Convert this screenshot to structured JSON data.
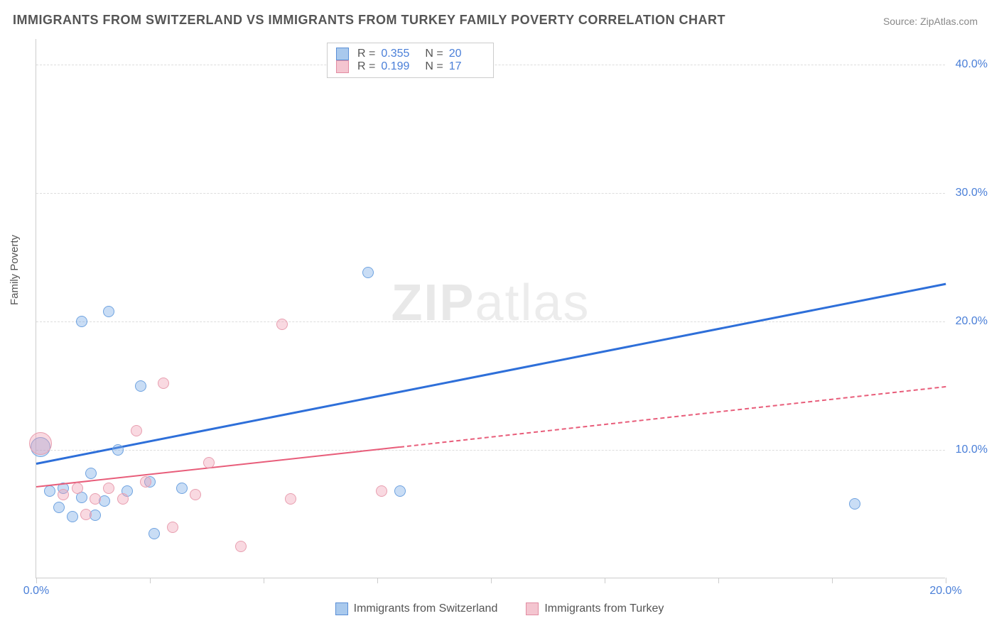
{
  "title": "IMMIGRANTS FROM SWITZERLAND VS IMMIGRANTS FROM TURKEY FAMILY POVERTY CORRELATION CHART",
  "source": "Source: ZipAtlas.com",
  "ylabel": "Family Poverty",
  "watermark_bold": "ZIP",
  "watermark_thin": "atlas",
  "chart": {
    "type": "scatter",
    "xlim": [
      0,
      20
    ],
    "ylim": [
      0,
      42
    ],
    "background_color": "#ffffff",
    "grid_color": "#dddddd",
    "axis_color": "#cccccc",
    "label_color": "#4a7fd8",
    "title_color": "#555555",
    "title_fontsize": 18,
    "label_fontsize": 15,
    "tick_fontsize": 16,
    "yticks": [
      10,
      20,
      30,
      40
    ],
    "ytick_labels": [
      "10.0%",
      "20.0%",
      "30.0%",
      "40.0%"
    ],
    "xticks": [
      0,
      2.5,
      5,
      7.5,
      10,
      12.5,
      15,
      17.5,
      20
    ],
    "xtick_labels_shown": {
      "0": "0.0%",
      "20": "20.0%"
    },
    "series": [
      {
        "name": "Immigrants from Switzerland",
        "color_fill": "rgba(120,170,230,0.4)",
        "color_stroke": "#6fa3e0",
        "swatch_fill": "#a9c9ed",
        "swatch_stroke": "#5b8fd6",
        "marker_radius": 8,
        "R": "0.355",
        "N": "20",
        "trend": {
          "color": "#2e6fd9",
          "width": 3,
          "dash": "solid",
          "x1": 0,
          "y1": 9.0,
          "x2": 20,
          "y2": 23.0
        },
        "points": [
          {
            "x": 0.1,
            "y": 10.2,
            "r": 14
          },
          {
            "x": 0.3,
            "y": 6.8
          },
          {
            "x": 0.5,
            "y": 5.5
          },
          {
            "x": 0.6,
            "y": 7.0
          },
          {
            "x": 0.8,
            "y": 4.8
          },
          {
            "x": 1.0,
            "y": 6.3
          },
          {
            "x": 1.0,
            "y": 20.0
          },
          {
            "x": 1.2,
            "y": 8.2
          },
          {
            "x": 1.3,
            "y": 4.9
          },
          {
            "x": 1.5,
            "y": 6.0
          },
          {
            "x": 1.6,
            "y": 20.8
          },
          {
            "x": 1.8,
            "y": 10.0
          },
          {
            "x": 2.0,
            "y": 6.8
          },
          {
            "x": 2.3,
            "y": 15.0
          },
          {
            "x": 2.5,
            "y": 7.5
          },
          {
            "x": 2.6,
            "y": 3.5
          },
          {
            "x": 3.2,
            "y": 7.0
          },
          {
            "x": 7.3,
            "y": 23.8
          },
          {
            "x": 8.0,
            "y": 6.8
          },
          {
            "x": 18.0,
            "y": 5.8
          }
        ]
      },
      {
        "name": "Immigrants from Turkey",
        "color_fill": "rgba(240,160,180,0.4)",
        "color_stroke": "#e89fb0",
        "swatch_fill": "#f4c5d0",
        "swatch_stroke": "#e28ca2",
        "marker_radius": 8,
        "R": "0.199",
        "N": "17",
        "trend": {
          "color": "#e85d7a",
          "width": 2,
          "dash": "solid",
          "x1": 0,
          "y1": 7.2,
          "x2": 8,
          "y2": 10.3,
          "extend": {
            "x2": 20,
            "y2": 15.0,
            "dash": "4,4"
          }
        },
        "points": [
          {
            "x": 0.1,
            "y": 10.5,
            "r": 16
          },
          {
            "x": 0.6,
            "y": 6.5
          },
          {
            "x": 0.9,
            "y": 7.0
          },
          {
            "x": 1.1,
            "y": 5.0
          },
          {
            "x": 1.3,
            "y": 6.2
          },
          {
            "x": 1.6,
            "y": 7.0
          },
          {
            "x": 1.9,
            "y": 6.2
          },
          {
            "x": 2.2,
            "y": 11.5
          },
          {
            "x": 2.4,
            "y": 7.5
          },
          {
            "x": 2.8,
            "y": 15.2
          },
          {
            "x": 3.0,
            "y": 4.0
          },
          {
            "x": 3.5,
            "y": 6.5
          },
          {
            "x": 3.8,
            "y": 9.0
          },
          {
            "x": 4.5,
            "y": 2.5
          },
          {
            "x": 5.4,
            "y": 19.8
          },
          {
            "x": 5.6,
            "y": 6.2
          },
          {
            "x": 7.6,
            "y": 6.8
          }
        ]
      }
    ]
  },
  "legend_top_labels": {
    "R": "R =",
    "N": "N ="
  }
}
